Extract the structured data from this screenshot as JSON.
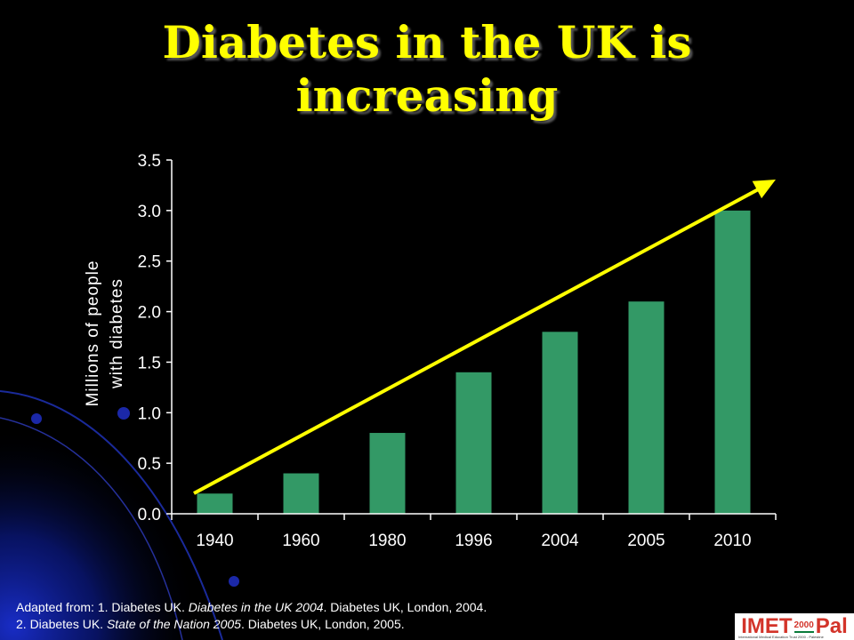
{
  "slide": {
    "title_line1": "Diabetes in the UK is",
    "title_line2": "increasing"
  },
  "chart_data": {
    "type": "bar",
    "title": "",
    "ylabel_line1": "Millions of people",
    "ylabel_line2": "with diabetes",
    "xlabel": "",
    "categories": [
      "1940",
      "1960",
      "1980",
      "1996",
      "2004",
      "2005",
      "2010"
    ],
    "values": [
      0.2,
      0.4,
      0.8,
      1.4,
      1.8,
      2.1,
      3.0
    ],
    "ylim": [
      0,
      3.5
    ],
    "yticks": [
      "0.0",
      "0.5",
      "1.0",
      "1.5",
      "2.0",
      "2.5",
      "3.0",
      "3.5"
    ],
    "bar_color": "#339966",
    "trend_arrow_color": "#ffff00",
    "grid": false,
    "legend": "none"
  },
  "source": {
    "line1_prefix": "Adapted from: 1. Diabetes UK. ",
    "line1_italic": "Diabetes in the UK 2004",
    "line1_suffix": ". Diabetes UK, London, 2004.",
    "line2_prefix": "2. Diabetes UK. ",
    "line2_italic": "State of the Nation 2005",
    "line2_suffix": ". Diabetes UK, London, 2005."
  },
  "logo": {
    "left_text": "IMET",
    "number": "2000",
    "right_text": "Pal",
    "subtitle": "International Medical Education Trust 2000 - Palestine"
  }
}
